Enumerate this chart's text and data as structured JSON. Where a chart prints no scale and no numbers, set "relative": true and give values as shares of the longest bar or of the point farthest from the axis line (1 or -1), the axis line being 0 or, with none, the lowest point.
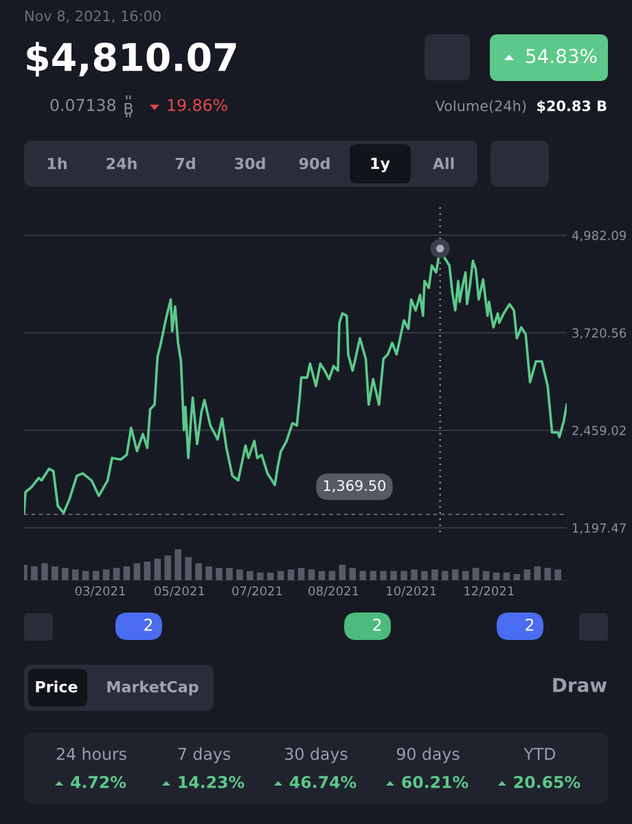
{
  "chart_data": [
    {
      "type": "line",
      "title": "$4,810.07",
      "subtitle": "Nov 8, 2021, 16:00",
      "series": [
        {
          "type": "line",
          "color": "#5cc98a",
          "x": [
            "2021-01-29",
            "2021-01-30",
            "2021-02-03",
            "2021-02-08",
            "2021-02-10",
            "2021-02-15",
            "2021-02-18",
            "2021-02-21",
            "2021-02-25",
            "2021-03-01",
            "2021-03-06",
            "2021-03-10",
            "2021-03-16",
            "2021-03-21",
            "2021-03-27",
            "2021-03-30",
            "2021-04-05",
            "2021-04-09",
            "2021-04-12",
            "2021-04-16",
            "2021-04-20",
            "2021-04-23",
            "2021-04-25",
            "2021-04-28",
            "2021-04-30",
            "2021-05-02",
            "2021-05-06",
            "2021-05-09",
            "2021-05-10",
            "2021-05-12",
            "2021-05-14",
            "2021-05-16",
            "2021-05-18",
            "2021-05-19",
            "2021-05-21",
            "2021-05-23",
            "2021-05-24",
            "2021-05-27",
            "2021-05-30",
            "2021-06-01",
            "2021-06-05",
            "2021-06-10",
            "2021-06-13",
            "2021-06-16",
            "2021-06-20",
            "2021-06-24",
            "2021-06-29",
            "2021-07-01",
            "2021-07-05",
            "2021-07-07",
            "2021-07-10",
            "2021-07-14",
            "2021-07-19",
            "2021-07-21",
            "2021-07-23",
            "2021-07-27",
            "2021-07-31",
            "2021-08-03",
            "2021-08-05",
            "2021-08-06",
            "2021-08-10",
            "2021-08-12",
            "2021-08-16",
            "2021-08-19",
            "2021-08-22",
            "2021-08-25",
            "2021-08-28",
            "2021-08-31",
            "2021-09-01",
            "2021-09-03",
            "2021-09-06",
            "2021-09-07",
            "2021-09-10",
            "2021-09-12",
            "2021-09-15",
            "2021-09-19",
            "2021-09-21",
            "2021-09-24",
            "2021-09-28",
            "2021-10-01",
            "2021-10-04",
            "2021-10-07",
            "2021-10-10",
            "2021-10-15",
            "2021-10-18",
            "2021-10-20",
            "2021-10-23",
            "2021-10-26",
            "2021-10-28",
            "2021-10-29",
            "2021-11-01",
            "2021-11-03",
            "2021-11-06",
            "2021-11-08T16:00",
            "2021-11-12",
            "2021-11-15",
            "2021-11-17",
            "2021-11-19",
            "2021-11-21",
            "2021-11-22",
            "2021-11-24",
            "2021-11-26",
            "2021-11-27",
            "2021-11-29",
            "2021-12-01",
            "2021-12-03",
            "2021-12-05",
            "2021-12-08",
            "2021-12-11",
            "2021-12-12",
            "2021-12-15",
            "2021-12-18",
            "2021-12-19",
            "2021-12-22",
            "2021-12-26",
            "2021-12-29",
            "2021-12-31",
            "2022-01-03",
            "2022-01-06",
            "2022-01-09",
            "2022-01-13",
            "2022-01-17",
            "2022-01-21",
            "2022-01-24",
            "2022-01-28",
            "2022-01-29",
            "2022-02-01",
            "2022-02-03"
          ],
          "values": [
            1390,
            1660,
            1720,
            1840,
            1810,
            1960,
            1930,
            1480,
            1390,
            1570,
            1870,
            1900,
            1810,
            1610,
            1810,
            2100,
            2080,
            2140,
            2490,
            2190,
            2410,
            2230,
            2730,
            2790,
            3410,
            3560,
            3920,
            4150,
            3740,
            4060,
            3590,
            3350,
            2460,
            2760,
            2100,
            2640,
            2880,
            2280,
            2700,
            2850,
            2520,
            2340,
            2610,
            2230,
            1870,
            1810,
            2260,
            2100,
            2320,
            2100,
            2140,
            1900,
            1750,
            1990,
            2180,
            2320,
            2550,
            2520,
            2900,
            3140,
            3140,
            3320,
            3030,
            3320,
            3230,
            3120,
            3290,
            3230,
            3850,
            3970,
            3940,
            3440,
            3230,
            3390,
            3650,
            3380,
            2790,
            3120,
            2790,
            3380,
            3440,
            3590,
            3440,
            3880,
            3770,
            4150,
            4010,
            4210,
            3940,
            4390,
            4300,
            4590,
            4500,
            4810.07,
            4680,
            4590,
            4240,
            4010,
            4390,
            4120,
            4330,
            4500,
            4090,
            4330,
            4650,
            4540,
            4150,
            4410,
            3940,
            4120,
            3790,
            3970,
            3850,
            3970,
            4090,
            4010,
            3650,
            3790,
            3700,
            3080,
            3350,
            3350,
            3030,
            2430,
            2430,
            2370,
            2580,
            2790
          ]
        },
        {
          "type": "scatter",
          "color": "#a9abb8",
          "x": [
            "2021-11-08T16:00"
          ],
          "values": [
            4810.07
          ]
        }
      ],
      "xlim": [
        "2021-01-29",
        "2022-02-03"
      ],
      "ylim": [
        1140,
        5360
      ],
      "yticks": [
        {
          "value": 1197.47,
          "label": "1,197.47"
        },
        {
          "value": 2459.02,
          "label": "2,459.02"
        },
        {
          "value": 3720.56,
          "label": "3,720.56"
        },
        {
          "value": 4982.09,
          "label": "4,982.09"
        }
      ],
      "tick_labels": "y",
      "grid": "y",
      "ref_lines": [
        {
          "axis": "y",
          "value": 1369.5,
          "label": "1,369.50",
          "line_style": "dashed",
          "color": "#6b6e7a"
        },
        {
          "axis": "x",
          "value": "2021-11-08T16:00",
          "line_style": "dotted",
          "color": "#9a9ca8"
        }
      ],
      "annotations": [
        "0.07138",
        "19.86%",
        "54.83%",
        "Volume(24h)",
        "$20.83 B",
        "1h",
        "24h",
        "7d",
        "30d",
        "90d",
        "1y",
        "All",
        "2",
        "2",
        "2",
        "Price",
        "MarketCap",
        "Draw",
        "24 hours",
        "4.72%",
        "7 days",
        "14.23%",
        "30 days",
        "46.74%",
        "90 days",
        "60.21%",
        "YTD",
        "20.65%"
      ]
    },
    {
      "type": "bar",
      "color": "#565a66",
      "relative": true,
      "tick_labels": "x",
      "x": [
        "2021-01-29",
        "2021-02-05",
        "2021-02-12",
        "2021-02-19",
        "2021-02-26",
        "2021-03-05",
        "2021-03-12",
        "2021-03-19",
        "2021-03-26",
        "2021-04-02",
        "2021-04-09",
        "2021-04-16",
        "2021-04-23",
        "2021-04-30",
        "2021-05-07",
        "2021-05-14",
        "2021-05-21",
        "2021-05-28",
        "2021-06-04",
        "2021-06-11",
        "2021-06-18",
        "2021-06-25",
        "2021-07-02",
        "2021-07-09",
        "2021-07-16",
        "2021-07-23",
        "2021-07-30",
        "2021-08-06",
        "2021-08-13",
        "2021-08-20",
        "2021-08-27",
        "2021-09-03",
        "2021-09-10",
        "2021-09-17",
        "2021-09-24",
        "2021-10-01",
        "2021-10-08",
        "2021-10-15",
        "2021-10-22",
        "2021-10-29",
        "2021-11-05",
        "2021-11-12",
        "2021-11-19",
        "2021-11-26",
        "2021-12-03",
        "2021-12-10",
        "2021-12-17",
        "2021-12-24",
        "2021-12-31",
        "2022-01-07",
        "2022-01-14",
        "2022-01-21",
        "2022-01-28"
      ],
      "values": [
        0.5,
        0.45,
        0.55,
        0.45,
        0.4,
        0.35,
        0.3,
        0.3,
        0.35,
        0.4,
        0.45,
        0.55,
        0.6,
        0.7,
        0.8,
        1.0,
        0.75,
        0.55,
        0.45,
        0.4,
        0.4,
        0.35,
        0.3,
        0.25,
        0.25,
        0.3,
        0.35,
        0.4,
        0.35,
        0.3,
        0.3,
        0.5,
        0.4,
        0.3,
        0.3,
        0.3,
        0.3,
        0.3,
        0.35,
        0.3,
        0.35,
        0.3,
        0.35,
        0.3,
        0.4,
        0.3,
        0.25,
        0.25,
        0.2,
        0.35,
        0.45,
        0.4,
        0.35
      ],
      "xlim": [
        "2021-01-29",
        "2022-02-03"
      ],
      "xticks": [
        {
          "value": "2021-03-22",
          "label": "03/2021"
        },
        {
          "value": "2021-05-15",
          "label": "05/2021"
        },
        {
          "value": "2021-07-07",
          "label": "07/2021"
        },
        {
          "value": "2021-08-28",
          "label": "08/2021"
        },
        {
          "value": "2021-10-20",
          "label": "10/2021"
        },
        {
          "value": "2021-12-12",
          "label": "12/2021"
        }
      ]
    }
  ]
}
